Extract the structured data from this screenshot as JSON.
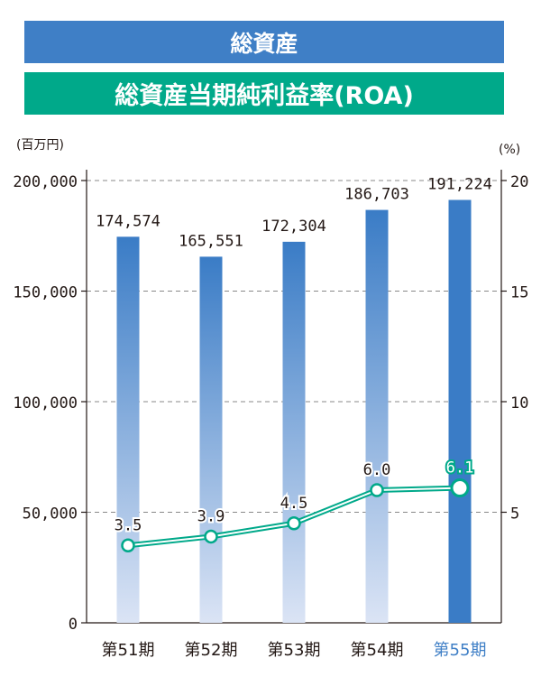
{
  "titles": {
    "bar_series_title": "総資産",
    "line_series_title": "総資産当期純利益率(ROA)"
  },
  "axes": {
    "left_unit": "(百万円)",
    "right_unit": "(%)"
  },
  "colors": {
    "bar_title_bg": "#3f7fc6",
    "line_title_bg": "#00a98a",
    "bar_top": "#3a7cc6",
    "bar_bottom": "#dbe4f5",
    "bar_highlight": "#3a7cc6",
    "line": "#00a98a",
    "highlight_label": "#3f7fc6"
  },
  "chart_data": {
    "type": "bar+line",
    "categories": [
      "第51期",
      "第52期",
      "第53期",
      "第54期",
      "第55期"
    ],
    "highlight_category_index": 4,
    "bars": {
      "name": "総資産",
      "values": [
        174574,
        165551,
        172304,
        186703,
        191224
      ],
      "labels": [
        "174,574",
        "165,551",
        "172,304",
        "186,703",
        "191,224"
      ],
      "ylim": [
        0,
        200000
      ],
      "ticks": [
        0,
        50000,
        100000,
        150000,
        200000
      ],
      "tick_labels": [
        "0",
        "50,000",
        "100,000",
        "150,000",
        "200,000"
      ]
    },
    "line": {
      "name": "総資産当期純利益率(ROA)",
      "values": [
        3.5,
        3.9,
        4.5,
        6.0,
        6.1
      ],
      "labels": [
        "3.5",
        "3.9",
        "4.5",
        "6.0",
        "6.1"
      ],
      "ylim": [
        0,
        20
      ],
      "ticks": [
        5,
        10,
        15,
        20
      ],
      "tick_labels": [
        "5",
        "10",
        "15",
        "20"
      ]
    },
    "grid": "dashed-horizontal"
  }
}
